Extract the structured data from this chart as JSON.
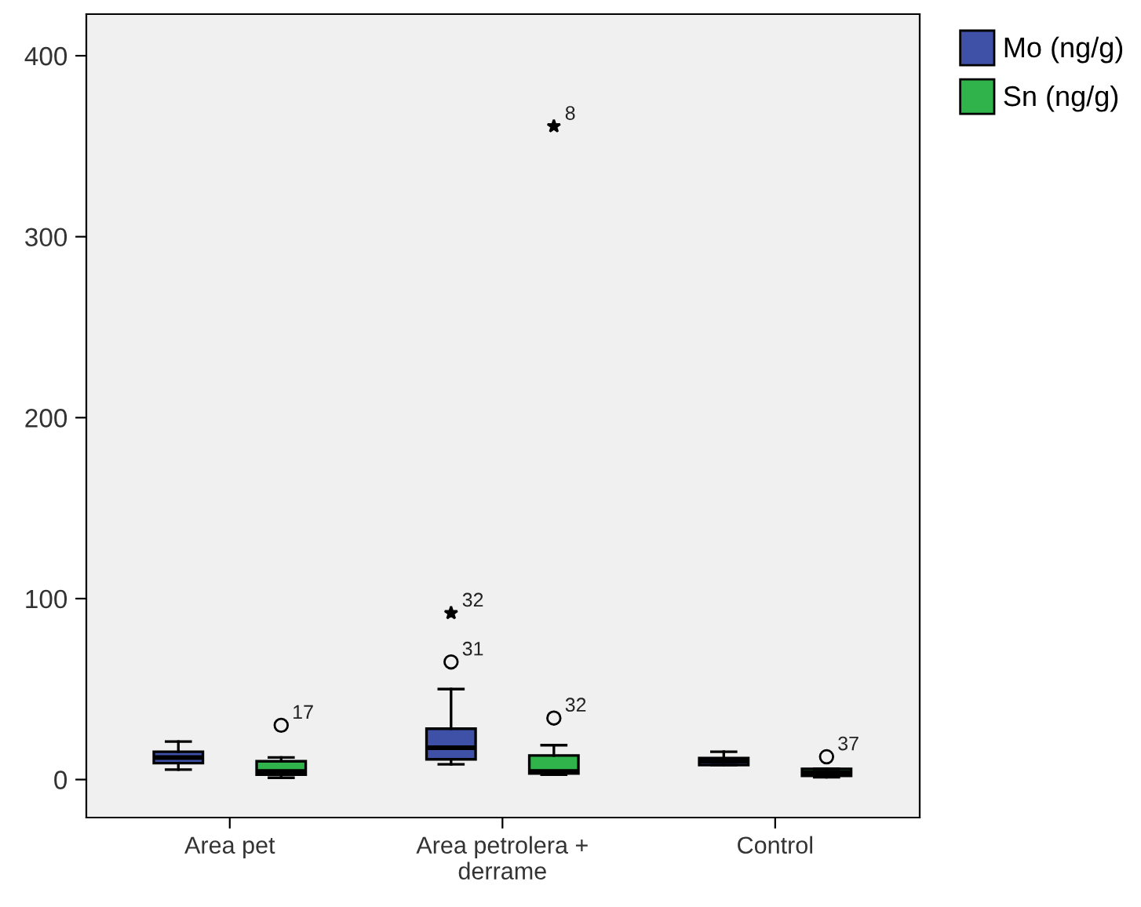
{
  "chart_data": {
    "type": "box",
    "categories": [
      "Area pet",
      "Area petrolera +\nderrame",
      "Control"
    ],
    "ylim": [
      -21,
      423
    ],
    "yticks": [
      0,
      100,
      200,
      300,
      400
    ],
    "grid": false,
    "legend": "top right",
    "series": [
      {
        "name": "Mo (ng/g)",
        "color": "#3f51a6",
        "boxes": [
          {
            "low": 5.5,
            "q1": 9.1,
            "median": 12.2,
            "q3": 15.4,
            "high": 21
          },
          {
            "low": 8.4,
            "q1": 11.2,
            "median": 17.6,
            "q3": 28.1,
            "high": 50,
            "outliers": [
              65,
              92
            ]
          },
          {
            "low": 8,
            "q1": 8,
            "median": 10.1,
            "q3": 11.9,
            "high": 15.4
          }
        ]
      },
      {
        "name": "Sn (ng/g)",
        "color": "#2fb34a",
        "boxes": [
          {
            "low": 1,
            "q1": 2.7,
            "median": 4.5,
            "q3": 10.1,
            "high": 12.2,
            "outliers": [
              30
            ]
          },
          {
            "low": 2.7,
            "q1": 3.4,
            "median": 4.5,
            "q3": 13.3,
            "high": 19,
            "outliers": [
              34,
              361
            ]
          },
          {
            "low": 1.3,
            "q1": 2,
            "median": 3.7,
            "q3": 5.9,
            "high": 5.9,
            "outliers": [
              12.6
            ]
          }
        ]
      }
    ],
    "annotations": [
      "31",
      "32",
      "17",
      "32",
      "8",
      "37"
    ]
  }
}
